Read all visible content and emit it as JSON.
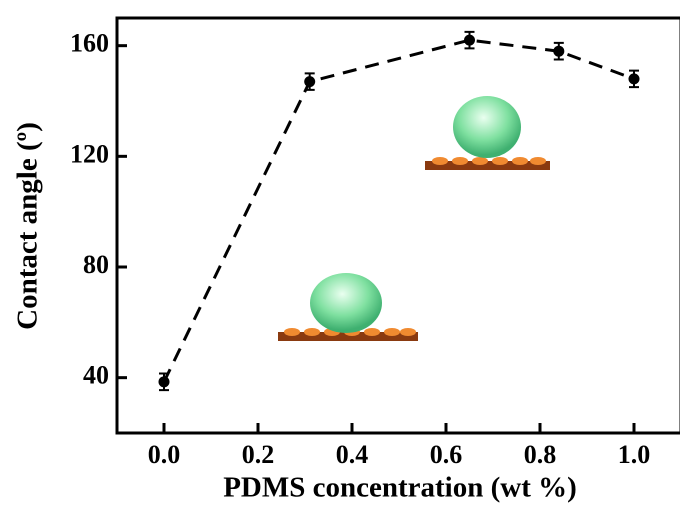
{
  "chart_data": {
    "type": "line",
    "x_label": "PDMS concentration (wt %)",
    "y_label": "Contact angle (º)",
    "x": [
      0.0,
      0.31,
      0.65,
      0.84,
      1.0
    ],
    "series": [
      {
        "color": "#000000",
        "values": [
          38.5,
          147,
          162,
          158,
          148
        ],
        "errors": [
          3,
          3,
          3,
          3,
          3
        ]
      }
    ],
    "xlim": [
      -0.1,
      1.1
    ],
    "ylim": [
      20,
      170
    ],
    "xticks": [
      {
        "value": 0,
        "label": "0.0"
      },
      {
        "value": 0.2,
        "label": "0.2"
      },
      {
        "value": 0.4,
        "label": "0.4"
      },
      {
        "value": 0.6,
        "label": "0.6"
      },
      {
        "value": 0.8,
        "label": "0.8"
      },
      {
        "value": 1.0,
        "label": "1.0"
      }
    ],
    "yticks": [
      40,
      80,
      120,
      160
    ]
  }
}
